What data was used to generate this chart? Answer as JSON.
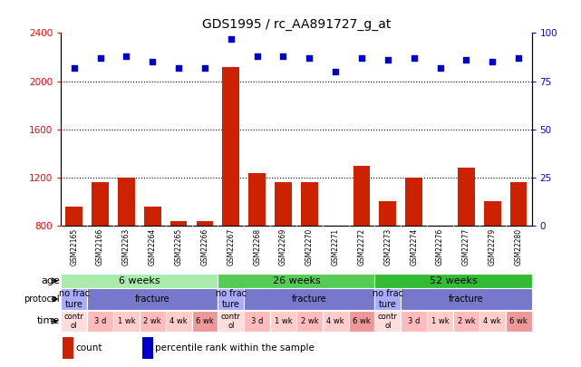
{
  "title": "GDS1995 / rc_AA891727_g_at",
  "samples": [
    "GSM22165",
    "GSM22166",
    "GSM22263",
    "GSM22264",
    "GSM22265",
    "GSM22266",
    "GSM22267",
    "GSM22268",
    "GSM22269",
    "GSM22270",
    "GSM22271",
    "GSM22272",
    "GSM22273",
    "GSM22274",
    "GSM22276",
    "GSM22277",
    "GSM22279",
    "GSM22280"
  ],
  "count_values": [
    960,
    1160,
    1200,
    960,
    840,
    840,
    2120,
    1240,
    1160,
    1160,
    800,
    1300,
    1000,
    1200,
    760,
    1280,
    1000,
    1160
  ],
  "percentile_values": [
    82,
    87,
    88,
    85,
    82,
    82,
    97,
    88,
    88,
    87,
    80,
    87,
    86,
    87,
    82,
    86,
    85,
    87
  ],
  "ylim_left": [
    800,
    2400
  ],
  "ylim_right": [
    0,
    100
  ],
  "yticks_left": [
    800,
    1200,
    1600,
    2000,
    2400
  ],
  "yticks_right": [
    0,
    25,
    50,
    75,
    100
  ],
  "bar_color": "#cc2200",
  "dot_color": "#0000cc",
  "age_groups": [
    {
      "label": "6 weeks",
      "start": 0,
      "end": 6,
      "color": "#aaeaaa"
    },
    {
      "label": "26 weeks",
      "start": 6,
      "end": 12,
      "color": "#55cc55"
    },
    {
      "label": "52 weeks",
      "start": 12,
      "end": 18,
      "color": "#33bb33"
    }
  ],
  "protocol_groups": [
    {
      "label": "no frac\nture",
      "start": 0,
      "end": 1,
      "color": "#aaaaff"
    },
    {
      "label": "fracture",
      "start": 1,
      "end": 6,
      "color": "#7777cc"
    },
    {
      "label": "no frac\nture",
      "start": 6,
      "end": 7,
      "color": "#aaaaff"
    },
    {
      "label": "fracture",
      "start": 7,
      "end": 12,
      "color": "#7777cc"
    },
    {
      "label": "no frac\nture",
      "start": 12,
      "end": 13,
      "color": "#aaaaff"
    },
    {
      "label": "fracture",
      "start": 13,
      "end": 18,
      "color": "#7777cc"
    }
  ],
  "time_groups": [
    {
      "label": "contr\nol",
      "start": 0,
      "end": 1,
      "color": "#ffdddd"
    },
    {
      "label": "3 d",
      "start": 1,
      "end": 2,
      "color": "#ffbbbb"
    },
    {
      "label": "1 wk",
      "start": 2,
      "end": 3,
      "color": "#ffcccc"
    },
    {
      "label": "2 wk",
      "start": 3,
      "end": 4,
      "color": "#ffbbbb"
    },
    {
      "label": "4 wk",
      "start": 4,
      "end": 5,
      "color": "#ffcccc"
    },
    {
      "label": "6 wk",
      "start": 5,
      "end": 6,
      "color": "#ee9999"
    },
    {
      "label": "contr\nol",
      "start": 6,
      "end": 7,
      "color": "#ffdddd"
    },
    {
      "label": "3 d",
      "start": 7,
      "end": 8,
      "color": "#ffbbbb"
    },
    {
      "label": "1 wk",
      "start": 8,
      "end": 9,
      "color": "#ffcccc"
    },
    {
      "label": "2 wk",
      "start": 9,
      "end": 10,
      "color": "#ffbbbb"
    },
    {
      "label": "4 wk",
      "start": 10,
      "end": 11,
      "color": "#ffcccc"
    },
    {
      "label": "6 wk",
      "start": 11,
      "end": 12,
      "color": "#ee9999"
    },
    {
      "label": "contr\nol",
      "start": 12,
      "end": 13,
      "color": "#ffdddd"
    },
    {
      "label": "3 d",
      "start": 13,
      "end": 14,
      "color": "#ffbbbb"
    },
    {
      "label": "1 wk",
      "start": 14,
      "end": 15,
      "color": "#ffcccc"
    },
    {
      "label": "2 wk",
      "start": 15,
      "end": 16,
      "color": "#ffbbbb"
    },
    {
      "label": "4 wk",
      "start": 16,
      "end": 17,
      "color": "#ffcccc"
    },
    {
      "label": "6 wk",
      "start": 17,
      "end": 18,
      "color": "#ee9999"
    }
  ],
  "legend_count_label": "count",
  "legend_pct_label": "percentile rank within the sample",
  "bg_color": "#ffffff",
  "tick_bg_color": "#cccccc"
}
